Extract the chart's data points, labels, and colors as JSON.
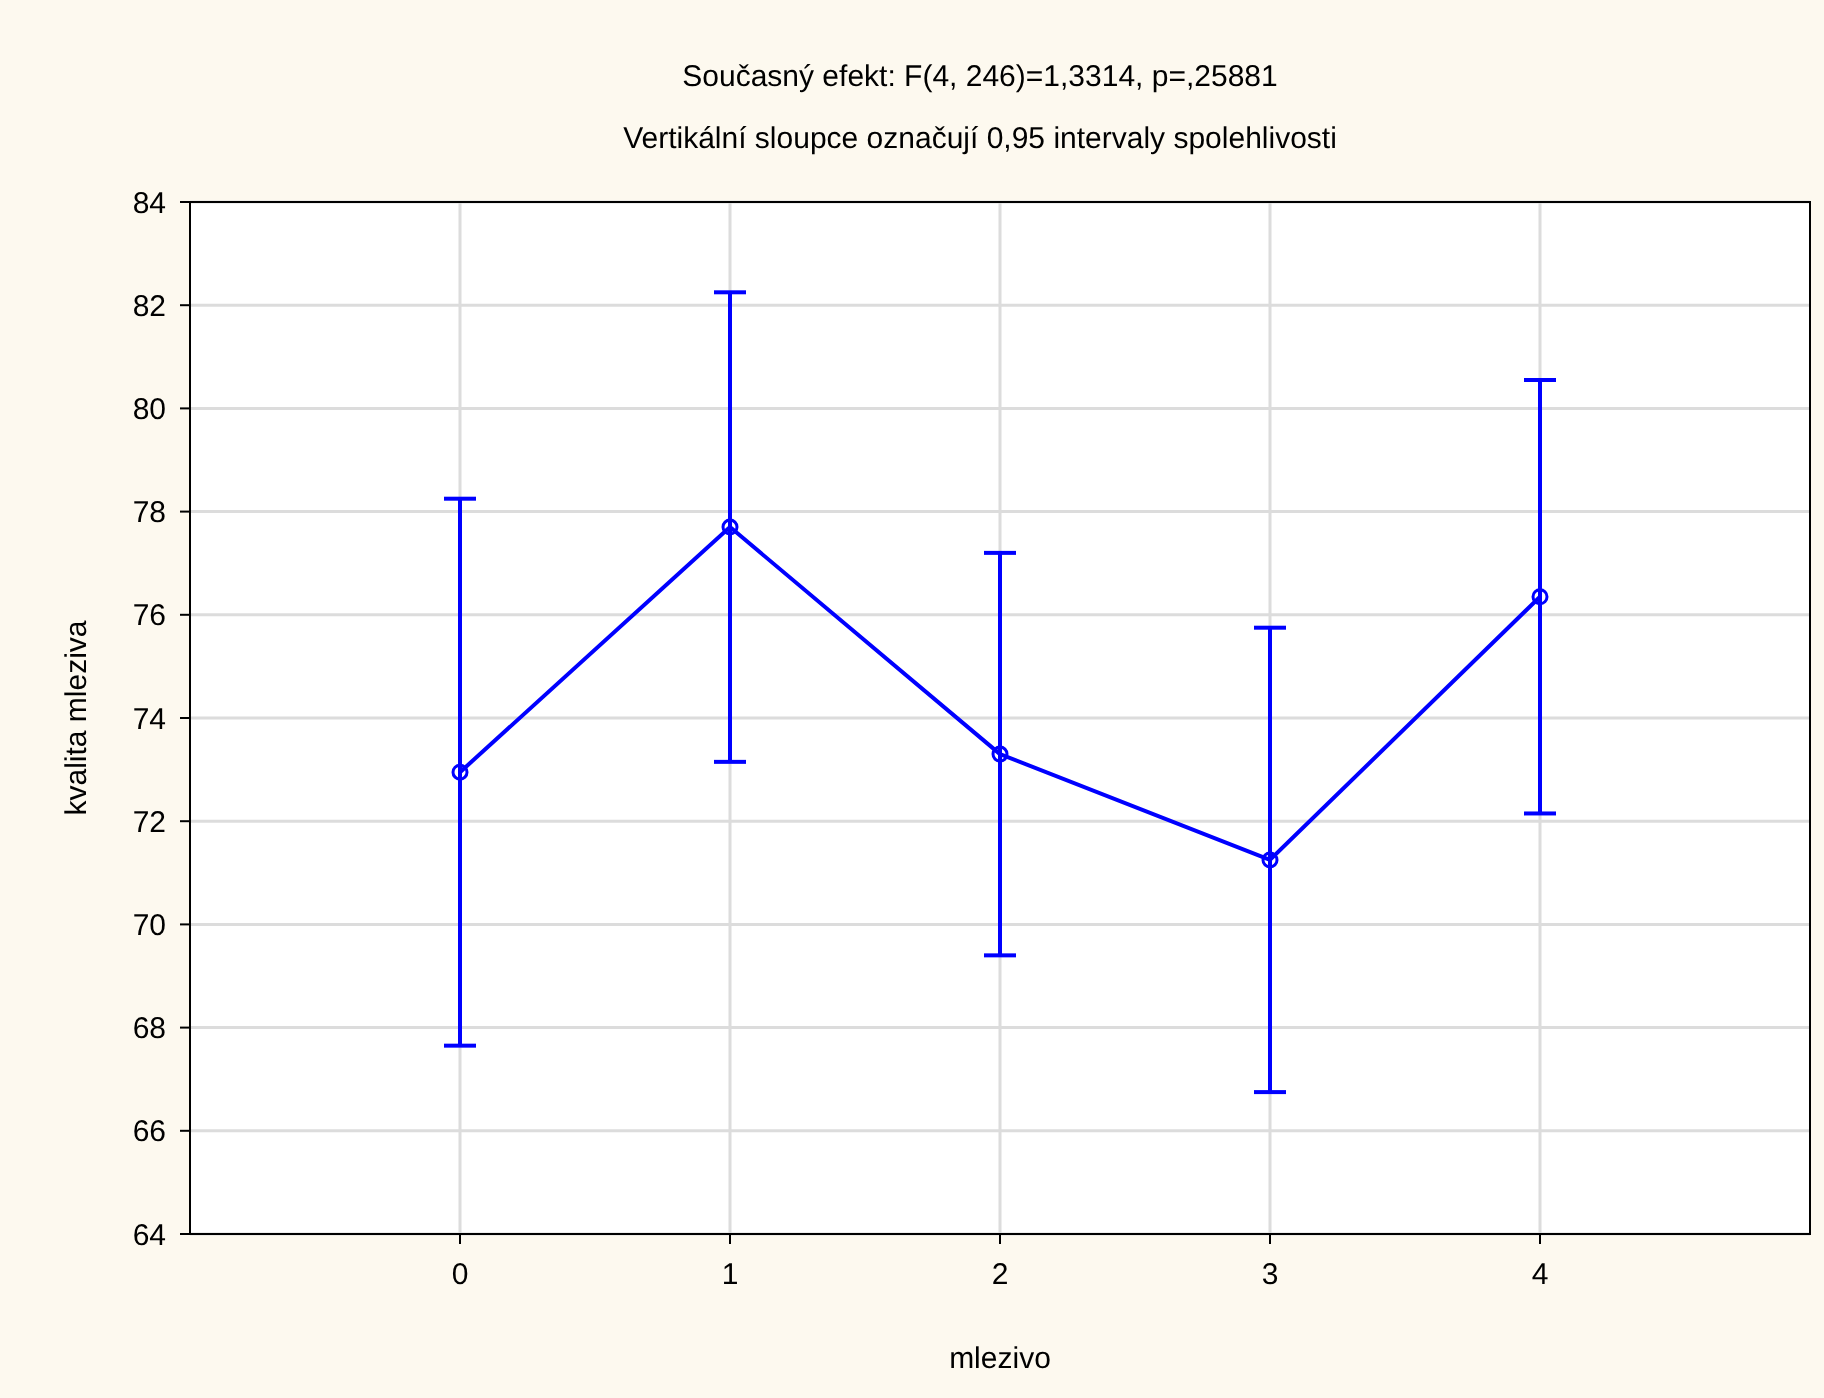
{
  "chart_data": {
    "type": "line",
    "title": "Současný efekt: F(4, 246)=1,3314, p=,25881",
    "subtitle": "Vertikální sloupce označují 0,95 intervaly spolehlivosti",
    "xlabel": "mlezivo",
    "ylabel": "kvalita mleziva",
    "x": [
      0,
      1,
      2,
      3,
      4
    ],
    "series": [
      {
        "color": "#0000ff",
        "values": [
          72.95,
          77.7,
          73.3,
          71.25,
          76.35
        ],
        "errors": [
          5.3,
          4.55,
          3.9,
          4.5,
          4.2
        ]
      }
    ],
    "xlim": [
      -1,
      5
    ],
    "xticks": [
      0,
      1,
      2,
      3,
      4
    ],
    "ylim": [
      64,
      84
    ],
    "yticks": [
      64,
      66,
      68,
      70,
      72,
      74,
      76,
      78,
      80,
      82,
      84
    ],
    "grid": true,
    "marker": "circle",
    "line_style": "solid"
  }
}
